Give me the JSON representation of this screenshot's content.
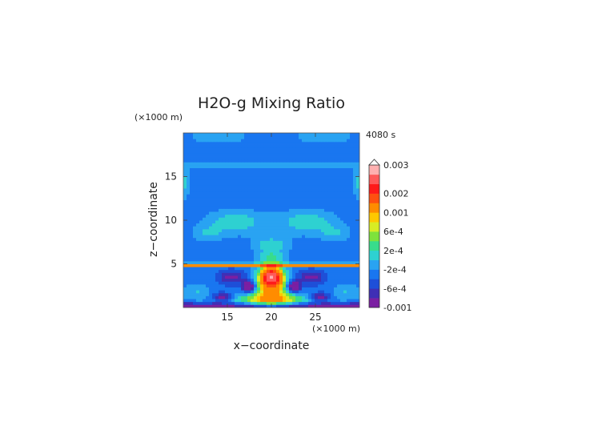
{
  "chart_data": {
    "type": "heatmap",
    "title": "H2O-g Mixing Ratio",
    "time_label": "4080 s",
    "xlabel": "x−coordinate",
    "ylabel": "z−coordinate",
    "x_unit": "(×1000 m)",
    "z_unit": "(×1000 m)",
    "xlim": [
      10,
      30
    ],
    "zlim": [
      0,
      20
    ],
    "x_ticks": [
      {
        "value": 15,
        "label": "15"
      },
      {
        "value": 20,
        "label": "20"
      },
      {
        "value": 25,
        "label": "25"
      }
    ],
    "z_ticks": [
      {
        "value": 5,
        "label": "5"
      },
      {
        "value": 10,
        "label": "10"
      },
      {
        "value": 15,
        "label": "15"
      }
    ],
    "colorbar": {
      "levels": [
        -0.001,
        -0.0008,
        -0.0006,
        -0.0004,
        -0.0002,
        0,
        0.0002,
        0.0004,
        0.0006,
        0.0008,
        0.001,
        0.0015,
        0.002,
        0.0025,
        0.003
      ],
      "colors": [
        "#7b1fa2",
        "#3f2fb5",
        "#1e4fd8",
        "#1976f0",
        "#29a3f2",
        "#2ed1d1",
        "#38dc8c",
        "#7ee23c",
        "#d8ec24",
        "#ffc800",
        "#ff8c00",
        "#ff5010",
        "#ff1a1a",
        "#ff5a5a",
        "#ffb0b0"
      ],
      "tick_labels": [
        {
          "value": 0.003,
          "label": "0.003"
        },
        {
          "value": 0.002,
          "label": "0.002"
        },
        {
          "value": 0.001,
          "label": "0.001"
        },
        {
          "value": 0.0006,
          "label": "6e-4"
        },
        {
          "value": 0.0002,
          "label": "2e-4"
        },
        {
          "value": -0.0002,
          "label": "-2e-4"
        },
        {
          "value": -0.0006,
          "label": "-6e-4"
        },
        {
          "value": -0.001,
          "label": "-0.001"
        }
      ]
    },
    "background_value": -0.0003,
    "features": [
      {
        "x": 20,
        "z": 3.6,
        "sx": 1.2,
        "sz": 1.1,
        "v": 0.0028
      },
      {
        "x": 20,
        "z": 2.2,
        "sx": 2.0,
        "sz": 1.6,
        "v": 0.0012
      },
      {
        "x": 20,
        "z": 0.9,
        "sx": 4.5,
        "sz": 0.7,
        "v": 0.001
      },
      {
        "x": 20,
        "z": 5.8,
        "sx": 1.5,
        "sz": 0.9,
        "v": 0.0005
      },
      {
        "x": 20,
        "z": 7.3,
        "sx": 2.0,
        "sz": 0.9,
        "v": 0.0004
      },
      {
        "x": 16,
        "z": 9.8,
        "sx": 3.2,
        "sz": 1.3,
        "v": 0.00045
      },
      {
        "x": 24,
        "z": 9.8,
        "sx": 3.2,
        "sz": 1.3,
        "v": 0.00045
      },
      {
        "x": 12.8,
        "z": 8.5,
        "sx": 1.6,
        "sz": 0.9,
        "v": 0.0003
      },
      {
        "x": 27.2,
        "z": 8.5,
        "sx": 1.6,
        "sz": 0.9,
        "v": 0.0003
      },
      {
        "x": 10,
        "z": 14.3,
        "sx": 0.7,
        "sz": 1.6,
        "v": 0.0004
      },
      {
        "x": 30,
        "z": 14.3,
        "sx": 0.7,
        "sz": 1.6,
        "v": 0.0004
      },
      {
        "x": 14,
        "z": 19.6,
        "sx": 3.0,
        "sz": 0.8,
        "v": 0.00025
      },
      {
        "x": 26,
        "z": 19.6,
        "sx": 3.0,
        "sz": 0.8,
        "v": 0.00025
      },
      {
        "x": 17.5,
        "z": 2.4,
        "sx": 0.8,
        "sz": 0.7,
        "v": -0.0011
      },
      {
        "x": 22.5,
        "z": 2.4,
        "sx": 0.8,
        "sz": 0.7,
        "v": -0.0011
      },
      {
        "x": 14.5,
        "z": 1.2,
        "sx": 1.2,
        "sz": 0.5,
        "v": -0.0008
      },
      {
        "x": 25.5,
        "z": 1.2,
        "sx": 1.2,
        "sz": 0.5,
        "v": -0.0008
      },
      {
        "x": 15.5,
        "z": 3.5,
        "sx": 1.5,
        "sz": 0.8,
        "v": -0.0006
      },
      {
        "x": 24.5,
        "z": 3.5,
        "sx": 1.5,
        "sz": 0.8,
        "v": -0.0006
      },
      {
        "x": 11.5,
        "z": 1.8,
        "sx": 1.6,
        "sz": 0.9,
        "v": 0.0003
      },
      {
        "x": 28.5,
        "z": 1.8,
        "sx": 1.6,
        "sz": 0.9,
        "v": 0.0003
      }
    ],
    "bands": [
      {
        "z": 4.9,
        "sz": 0.18,
        "v": 0.0016
      },
      {
        "z": 0.25,
        "sz": 0.3,
        "v": -0.0007
      },
      {
        "z": 16.3,
        "sz": 0.35,
        "v": 0.0002
      }
    ]
  }
}
